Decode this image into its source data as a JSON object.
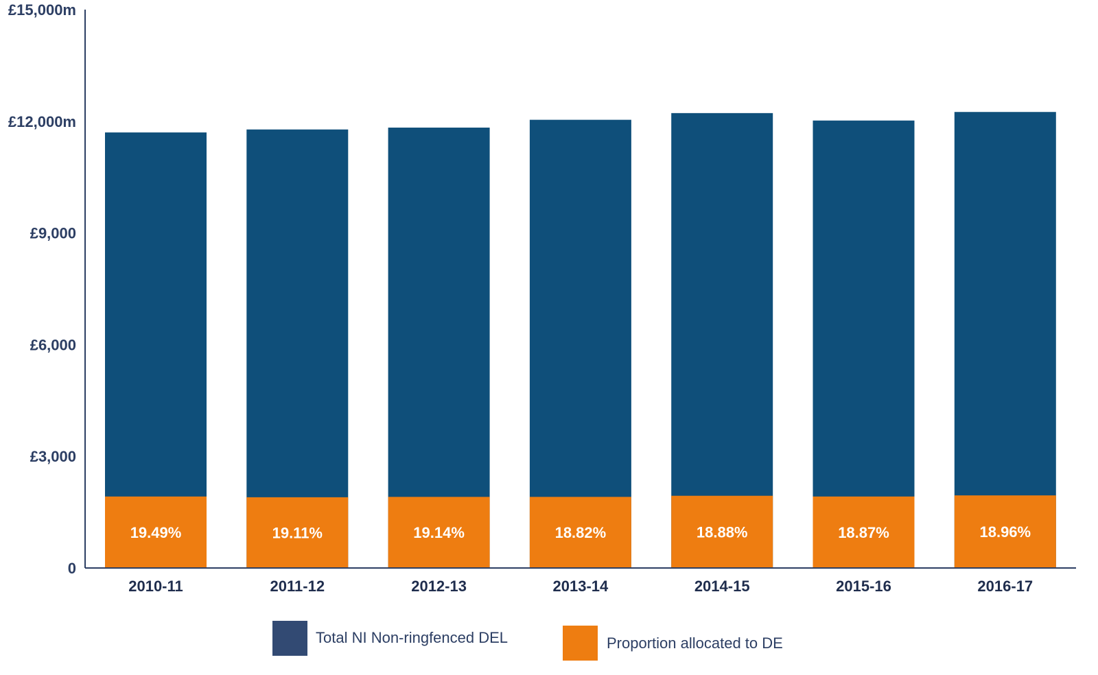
{
  "chart_data": {
    "type": "bar",
    "stacked": true,
    "categories": [
      "2010-11",
      "2011-12",
      "2012-13",
      "2013-14",
      "2014-15",
      "2015-16",
      "2016-17"
    ],
    "series": [
      {
        "name": "Total NI Non-ringfenced DEL",
        "color": "#0f4f7a",
        "values": [
          11700,
          11780,
          11830,
          12040,
          12220,
          12020,
          12250
        ]
      },
      {
        "name": "Proportion allocated to DE",
        "color": "#ee7d11",
        "values": [
          1920,
          1900,
          1910,
          1910,
          1940,
          1920,
          1950
        ],
        "labels": [
          "19.49%",
          "19.11%",
          "19.14%",
          "18.82%",
          "18.88%",
          "18.87%",
          "18.96%"
        ]
      }
    ],
    "ylim": [
      0,
      15000
    ],
    "yticks": [
      0,
      3000,
      6000,
      9000,
      12000,
      15000
    ],
    "ytick_labels": [
      "0",
      "£3,000",
      "£6,000",
      "£9,000",
      "£12,000m",
      "£15,000m"
    ],
    "grid": false,
    "legend": {
      "position": "bottom",
      "items": [
        {
          "label": "Total NI Non-ringfenced DEL",
          "color": "#324a73"
        },
        {
          "label": "Proportion allocated to DE",
          "color": "#ee7d11"
        }
      ]
    }
  }
}
